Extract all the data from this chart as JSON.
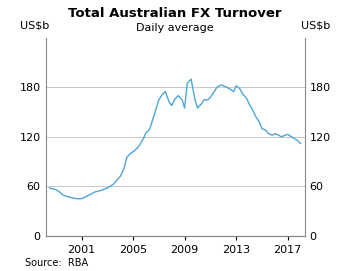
{
  "title": "Total Australian FX Turnover",
  "subtitle": "Daily average",
  "ylabel_left": "US$b",
  "ylabel_right": "US$b",
  "source": "Source:  RBA",
  "line_color": "#4da6d8",
  "line_width": 1.0,
  "background_color": "#ffffff",
  "grid_color": "#c8c8c8",
  "ylim": [
    0,
    240
  ],
  "yticks": [
    0,
    60,
    120,
    180
  ],
  "x_data": [
    1998.5,
    1999.0,
    1999.3,
    1999.5,
    1999.8,
    2000.0,
    2000.3,
    2000.6,
    2001.0,
    2001.3,
    2001.5,
    2001.8,
    2002.0,
    2002.5,
    2003.0,
    2003.5,
    2004.0,
    2004.3,
    2004.5,
    2004.8,
    2005.0,
    2005.3,
    2005.5,
    2005.8,
    2006.0,
    2006.3,
    2006.5,
    2006.8,
    2007.0,
    2007.2,
    2007.5,
    2007.8,
    2008.0,
    2008.2,
    2008.5,
    2008.8,
    2009.0,
    2009.2,
    2009.5,
    2009.8,
    2010.0,
    2010.3,
    2010.5,
    2010.8,
    2011.0,
    2011.3,
    2011.5,
    2011.8,
    2012.0,
    2012.3,
    2012.5,
    2012.8,
    2013.0,
    2013.3,
    2013.5,
    2013.8,
    2014.0,
    2014.3,
    2014.5,
    2014.8,
    2015.0,
    2015.3,
    2015.5,
    2015.8,
    2016.0,
    2016.3,
    2016.5,
    2016.8,
    2017.0,
    2017.3,
    2017.5,
    2017.8,
    2018.0
  ],
  "y_data": [
    58,
    56,
    53,
    50,
    48,
    47,
    46,
    45,
    45,
    47,
    49,
    51,
    53,
    55,
    58,
    63,
    72,
    82,
    95,
    100,
    102,
    106,
    110,
    118,
    125,
    130,
    140,
    155,
    165,
    170,
    175,
    162,
    158,
    165,
    170,
    165,
    155,
    185,
    190,
    165,
    155,
    160,
    165,
    165,
    168,
    175,
    180,
    183,
    182,
    180,
    178,
    175,
    182,
    178,
    172,
    167,
    160,
    152,
    145,
    138,
    130,
    128,
    124,
    122,
    124,
    122,
    120,
    122,
    123,
    120,
    118,
    115,
    112
  ],
  "xticks": [
    2001,
    2005,
    2009,
    2013,
    2017
  ],
  "xlim": [
    1998.2,
    2018.3
  ]
}
